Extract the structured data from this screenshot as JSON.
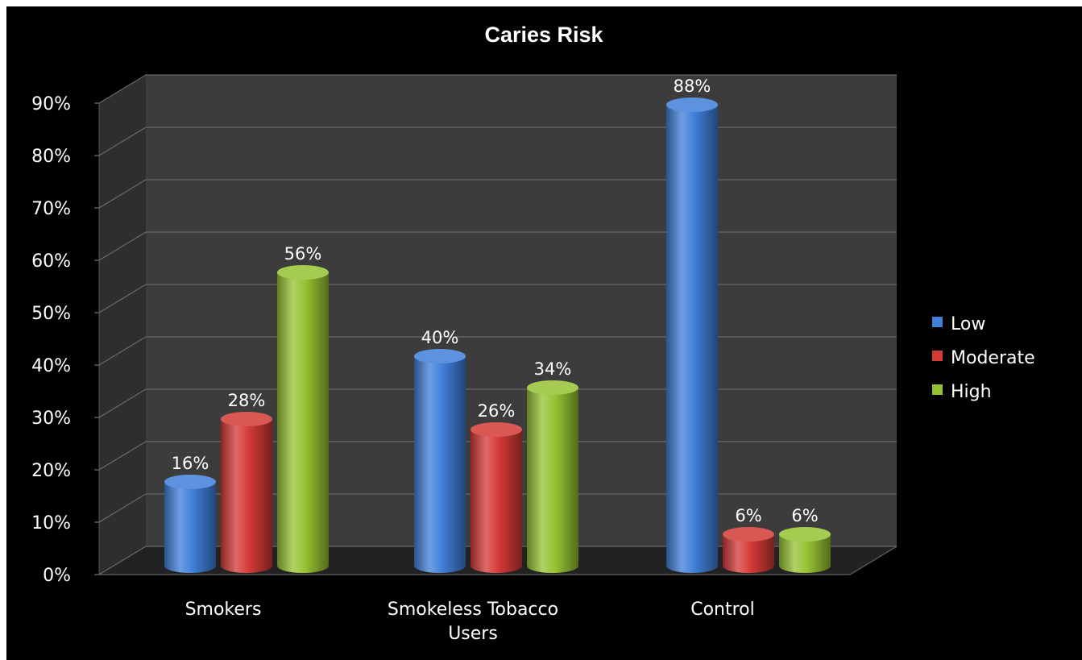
{
  "chart_data": {
    "type": "bar",
    "title": "Caries Risk",
    "categories": [
      "Smokers",
      "Smokeless Tobacco Users",
      "Control"
    ],
    "category_lines": [
      [
        "Smokers"
      ],
      [
        "Smokeless Tobacco",
        "Users"
      ],
      [
        "Control"
      ]
    ],
    "series": [
      {
        "name": "Low",
        "values": [
          16,
          40,
          88
        ],
        "labels": [
          "16%",
          "40%",
          "88%"
        ],
        "color": "#3f7fd8"
      },
      {
        "name": "Moderate",
        "values": [
          28,
          26,
          6
        ],
        "labels": [
          "28%",
          "26%",
          "6%"
        ],
        "color": "#d43a36"
      },
      {
        "name": "High",
        "values": [
          56,
          34,
          6
        ],
        "labels": [
          "56%",
          "34%",
          "6%"
        ],
        "color": "#95c232"
      }
    ],
    "ylim": [
      0,
      90
    ],
    "yticks": [
      0,
      10,
      20,
      30,
      40,
      50,
      60,
      70,
      80,
      90
    ],
    "ytick_labels": [
      "0%",
      "10%",
      "20%",
      "30%",
      "40%",
      "50%",
      "60%",
      "70%",
      "80%",
      "90%"
    ],
    "grid": true,
    "legend_position": "right",
    "background": "#000000",
    "wall_color": "#3a3a3a",
    "bar_style": "cylinder"
  }
}
